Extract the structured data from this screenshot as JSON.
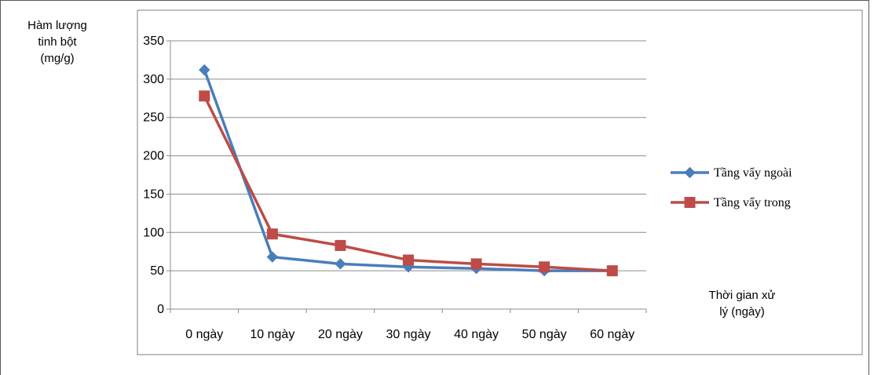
{
  "chart_data": {
    "type": "line",
    "ylabel_lines": [
      "Hàm lượng",
      "tinh bột",
      "(mg/g)"
    ],
    "xlabel_lines": [
      "Thời gian xử",
      "lý (ngày)"
    ],
    "categories": [
      "0 ngày",
      "10 ngày",
      "20 ngày",
      "30 ngày",
      "40 ngày",
      "50 ngày",
      "60 ngày"
    ],
    "ylim": [
      0,
      350
    ],
    "yticks": [
      0,
      50,
      100,
      150,
      200,
      250,
      300,
      350
    ],
    "grid": true,
    "legend_position": "right",
    "series": [
      {
        "name": "Tầng vẩy ngoài",
        "color": "#4a7ebb",
        "marker": "diamond",
        "values": [
          312,
          68,
          59,
          55,
          53,
          50,
          50
        ]
      },
      {
        "name": "Tầng vẩy trong",
        "color": "#be4b48",
        "marker": "square",
        "values": [
          278,
          98,
          83,
          64,
          59,
          55,
          50
        ]
      }
    ]
  }
}
